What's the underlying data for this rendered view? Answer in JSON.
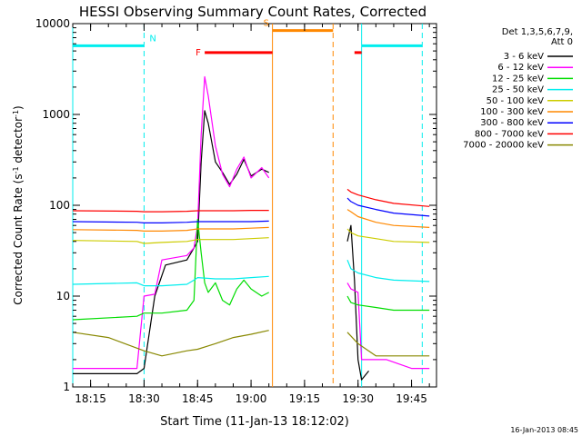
{
  "chart_data": {
    "type": "line",
    "title": "HESSI Observing Summary Count Rates, Corrected",
    "xlabel": "Start Time (11-Jan-13 18:12:02)",
    "ylabel_parts": [
      "Corrected Count Rate (s",
      "-1",
      " detector",
      "-1",
      ")"
    ],
    "y_scale": "log",
    "ylim": [
      1,
      10000
    ],
    "xlim": [
      "18:10",
      "19:52"
    ],
    "x_ticks": [
      {
        "time": "18:15",
        "label": "18:15"
      },
      {
        "time": "18:30",
        "label": "18:30"
      },
      {
        "time": "18:45",
        "label": "18:45"
      },
      {
        "time": "19:00",
        "label": "19:00"
      },
      {
        "time": "19:15",
        "label": "19:15"
      },
      {
        "time": "19:30",
        "label": "19:30"
      },
      {
        "time": "19:45",
        "label": "19:45"
      }
    ],
    "y_ticks": [
      {
        "value": 1,
        "label": "1"
      },
      {
        "value": 10,
        "label": "10"
      },
      {
        "value": 100,
        "label": "100"
      },
      {
        "value": 1000,
        "label": "1000"
      },
      {
        "value": 10000,
        "label": "10000"
      }
    ],
    "legend_header": [
      "Det 1,3,5,6,7,9,",
      "Att 0"
    ],
    "legend_position": "right",
    "series": [
      {
        "name": "3 - 6 keV",
        "color": "#000000",
        "points": [
          [
            "18:10",
            1.4
          ],
          [
            "18:28",
            1.4
          ],
          [
            "18:30",
            1.6
          ],
          [
            "18:33",
            10
          ],
          [
            "18:36",
            22
          ],
          [
            "18:42",
            25
          ],
          [
            "18:44",
            34
          ],
          [
            "18:45",
            40
          ],
          [
            "18:46",
            300
          ],
          [
            "18:47",
            1100
          ],
          [
            "18:48",
            800
          ],
          [
            "18:50",
            300
          ],
          [
            "18:52",
            230
          ],
          [
            "18:54",
            170
          ],
          [
            "18:56",
            220
          ],
          [
            "18:58",
            320
          ],
          [
            "19:00",
            210
          ],
          [
            "19:03",
            250
          ],
          [
            "19:05",
            230
          ],
          [
            "19:05.5",
            null
          ],
          [
            "19:27",
            40
          ],
          [
            "19:28",
            60
          ],
          [
            "19:29",
            15
          ],
          [
            "19:30",
            2
          ],
          [
            "19:31",
            1.2
          ],
          [
            "19:33",
            1.5
          ]
        ]
      },
      {
        "name": "6 - 12 keV",
        "color": "#ff00ff",
        "points": [
          [
            "18:10",
            1.6
          ],
          [
            "18:28",
            1.6
          ],
          [
            "18:30",
            10
          ],
          [
            "18:33",
            10.5
          ],
          [
            "18:35",
            25
          ],
          [
            "18:42",
            28
          ],
          [
            "18:44",
            34
          ],
          [
            "18:45",
            60
          ],
          [
            "18:46",
            600
          ],
          [
            "18:47",
            2600
          ],
          [
            "18:48",
            1600
          ],
          [
            "18:50",
            450
          ],
          [
            "18:52",
            220
          ],
          [
            "18:54",
            160
          ],
          [
            "18:56",
            250
          ],
          [
            "18:58",
            340
          ],
          [
            "19:00",
            200
          ],
          [
            "19:03",
            260
          ],
          [
            "19:05",
            200
          ],
          [
            "19:05.5",
            null
          ],
          [
            "19:27",
            14
          ],
          [
            "19:28",
            12
          ],
          [
            "19:30",
            11
          ],
          [
            "19:31",
            2
          ],
          [
            "19:38",
            2
          ],
          [
            "19:45",
            1.6
          ],
          [
            "19:50",
            1.6
          ]
        ]
      },
      {
        "name": "12 - 25 keV",
        "color": "#00dd00",
        "points": [
          [
            "18:10",
            5.5
          ],
          [
            "18:28",
            6
          ],
          [
            "18:30",
            6.5
          ],
          [
            "18:35",
            6.5
          ],
          [
            "18:42",
            7
          ],
          [
            "18:44",
            9
          ],
          [
            "18:45",
            70
          ],
          [
            "18:46",
            30
          ],
          [
            "18:47",
            14
          ],
          [
            "18:48",
            11
          ],
          [
            "18:50",
            14
          ],
          [
            "18:52",
            9
          ],
          [
            "18:54",
            8
          ],
          [
            "18:56",
            12
          ],
          [
            "18:58",
            15
          ],
          [
            "19:00",
            12
          ],
          [
            "19:03",
            10
          ],
          [
            "19:05",
            11
          ],
          [
            "19:05.5",
            null
          ],
          [
            "19:27",
            10
          ],
          [
            "19:28",
            8.5
          ],
          [
            "19:30",
            8
          ],
          [
            "19:35",
            7.5
          ],
          [
            "19:40",
            7
          ],
          [
            "19:50",
            7
          ]
        ]
      },
      {
        "name": "25 - 50 keV",
        "color": "#00eeee",
        "points": [
          [
            "18:10",
            13.5
          ],
          [
            "18:28",
            14
          ],
          [
            "18:30",
            13
          ],
          [
            "18:35",
            13
          ],
          [
            "18:42",
            13.5
          ],
          [
            "18:44",
            15
          ],
          [
            "18:45",
            16
          ],
          [
            "18:50",
            15.5
          ],
          [
            "18:55",
            15.5
          ],
          [
            "19:00",
            16
          ],
          [
            "19:05",
            16.5
          ],
          [
            "19:05.5",
            null
          ],
          [
            "19:27",
            25
          ],
          [
            "19:28",
            20
          ],
          [
            "19:30",
            18
          ],
          [
            "19:35",
            16
          ],
          [
            "19:40",
            15
          ],
          [
            "19:50",
            14.5
          ]
        ]
      },
      {
        "name": "50 - 100 keV",
        "color": "#cccc00",
        "points": [
          [
            "18:10",
            41
          ],
          [
            "18:28",
            40
          ],
          [
            "18:30",
            38
          ],
          [
            "18:35",
            39
          ],
          [
            "18:42",
            40
          ],
          [
            "18:45",
            42
          ],
          [
            "18:50",
            42
          ],
          [
            "18:55",
            42
          ],
          [
            "19:00",
            43
          ],
          [
            "19:05",
            44
          ],
          [
            "19:05.5",
            null
          ],
          [
            "19:27",
            55
          ],
          [
            "19:28",
            50
          ],
          [
            "19:30",
            46
          ],
          [
            "19:35",
            43
          ],
          [
            "19:40",
            40
          ],
          [
            "19:50",
            39
          ]
        ]
      },
      {
        "name": "100 - 300 keV",
        "color": "#ff8800",
        "points": [
          [
            "18:10",
            54
          ],
          [
            "18:28",
            53
          ],
          [
            "18:30",
            52
          ],
          [
            "18:35",
            52
          ],
          [
            "18:42",
            53
          ],
          [
            "18:45",
            55
          ],
          [
            "18:50",
            55
          ],
          [
            "18:55",
            55
          ],
          [
            "19:00",
            56
          ],
          [
            "19:05",
            57
          ],
          [
            "19:05.5",
            null
          ],
          [
            "19:27",
            90
          ],
          [
            "19:28",
            85
          ],
          [
            "19:30",
            75
          ],
          [
            "19:35",
            65
          ],
          [
            "19:40",
            60
          ],
          [
            "19:50",
            57
          ]
        ]
      },
      {
        "name": "300 - 800 keV",
        "color": "#0000ff",
        "points": [
          [
            "18:10",
            66
          ],
          [
            "18:28",
            65
          ],
          [
            "18:30",
            64
          ],
          [
            "18:35",
            64
          ],
          [
            "18:42",
            65
          ],
          [
            "18:45",
            66
          ],
          [
            "18:50",
            66
          ],
          [
            "18:55",
            66
          ],
          [
            "19:00",
            66
          ],
          [
            "19:05",
            67
          ],
          [
            "19:05.5",
            null
          ],
          [
            "19:27",
            120
          ],
          [
            "19:28",
            110
          ],
          [
            "19:30",
            100
          ],
          [
            "19:35",
            90
          ],
          [
            "19:40",
            82
          ],
          [
            "19:50",
            76
          ]
        ]
      },
      {
        "name": "800 - 7000 keV",
        "color": "#ff0000",
        "points": [
          [
            "18:10",
            87
          ],
          [
            "18:28",
            86
          ],
          [
            "18:30",
            85
          ],
          [
            "18:35",
            85
          ],
          [
            "18:42",
            86
          ],
          [
            "18:45",
            87
          ],
          [
            "18:50",
            87
          ],
          [
            "18:55",
            87
          ],
          [
            "19:00",
            88
          ],
          [
            "19:05",
            88
          ],
          [
            "19:05.5",
            null
          ],
          [
            "19:27",
            150
          ],
          [
            "19:28",
            140
          ],
          [
            "19:30",
            130
          ],
          [
            "19:35",
            115
          ],
          [
            "19:40",
            105
          ],
          [
            "19:50",
            97
          ]
        ]
      },
      {
        "name": "7000 - 20000 keV",
        "color": "#888800",
        "points": [
          [
            "18:10",
            4
          ],
          [
            "18:20",
            3.5
          ],
          [
            "18:30",
            2.5
          ],
          [
            "18:35",
            2.2
          ],
          [
            "18:42",
            2.5
          ],
          [
            "18:45",
            2.6
          ],
          [
            "18:50",
            3
          ],
          [
            "18:55",
            3.5
          ],
          [
            "19:00",
            3.8
          ],
          [
            "19:05",
            4.2
          ],
          [
            "19:05.5",
            null
          ],
          [
            "19:27",
            4
          ],
          [
            "19:30",
            3
          ],
          [
            "19:35",
            2.2
          ],
          [
            "19:40",
            2.2
          ],
          [
            "19:50",
            2.2
          ]
        ]
      }
    ],
    "flag_bars": [
      {
        "label": "N",
        "color": "#00eeee",
        "segments": [
          [
            "18:10",
            "18:30"
          ],
          [
            "19:31",
            "19:48"
          ]
        ],
        "level": 5700
      },
      {
        "label": "F",
        "color": "#ff0000",
        "segments": [
          [
            "18:47",
            "19:06"
          ],
          [
            "19:29",
            "19:31"
          ]
        ],
        "level": 4800
      },
      {
        "label": "S",
        "color": "#ff8800",
        "segments": [
          [
            "19:06",
            "19:23"
          ]
        ],
        "level": 8400
      }
    ],
    "vertical_lines": [
      {
        "time": "18:10",
        "color": "#00eeee",
        "style": "solid"
      },
      {
        "time": "18:30",
        "color": "#00eeee",
        "style": "dashed"
      },
      {
        "time": "19:06",
        "color": "#ff8800",
        "style": "solid"
      },
      {
        "time": "19:23",
        "color": "#ff8800",
        "style": "dashed"
      },
      {
        "time": "19:31",
        "color": "#00eeee",
        "style": "solid"
      },
      {
        "time": "19:48",
        "color": "#00eeee",
        "style": "dashed"
      }
    ]
  },
  "footer": {
    "timestamp": "16-Jan-2013 08:45"
  }
}
